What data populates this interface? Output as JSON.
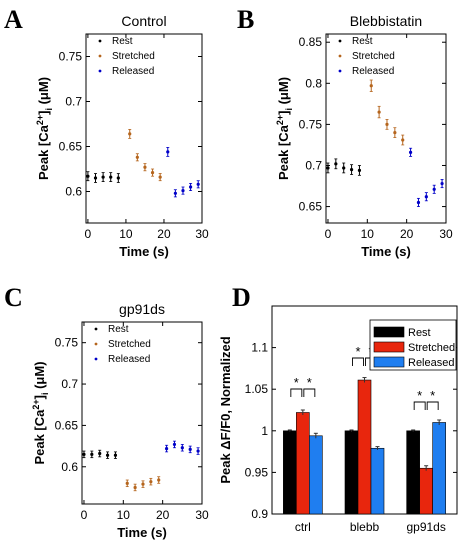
{
  "chart_data": [
    {
      "id": "A",
      "type": "scatter",
      "panel_label": "A",
      "title": "Control",
      "xlabel": "Time (s)",
      "ylabel_main": "Peak [Ca",
      "ylabel_sup": "2+",
      "ylabel_tail": "]",
      "ylabel_sub": "i",
      "ylabel_unit": " (μM)",
      "xlim": [
        -0.5,
        30
      ],
      "ylim": [
        0.565,
        0.775
      ],
      "xticks": [
        0,
        10,
        20,
        30
      ],
      "xtick_labels": [
        "0",
        "10",
        "20",
        "30"
      ],
      "yticks": [
        0.6,
        0.65,
        0.7,
        0.75
      ],
      "ytick_labels": [
        "0.6",
        "0.65",
        "0.7",
        "0.75"
      ],
      "legend": [
        "Rest",
        "Stretched",
        "Released"
      ],
      "series": [
        {
          "name": "Rest",
          "color": "#000000",
          "x": [
            0,
            2,
            4,
            6,
            8
          ],
          "y": [
            0.617,
            0.615,
            0.616,
            0.616,
            0.615
          ],
          "err": [
            0.005,
            0.005,
            0.005,
            0.005,
            0.005
          ]
        },
        {
          "name": "Stretched",
          "color": "#b5651d",
          "x": [
            11,
            13,
            15,
            17,
            19
          ],
          "y": [
            0.664,
            0.638,
            0.627,
            0.621,
            0.616
          ],
          "err": [
            0.005,
            0.004,
            0.004,
            0.004,
            0.004
          ]
        },
        {
          "name": "Released",
          "color": "#0000c8",
          "x": [
            21,
            23,
            25,
            27,
            29
          ],
          "y": [
            0.644,
            0.598,
            0.601,
            0.605,
            0.608
          ],
          "err": [
            0.005,
            0.004,
            0.004,
            0.004,
            0.004
          ]
        }
      ]
    },
    {
      "id": "B",
      "type": "scatter",
      "panel_label": "B",
      "title": "Blebbistatin",
      "xlabel": "Time (s)",
      "ylabel_main": "Peak [Ca",
      "ylabel_sup": "2+",
      "ylabel_tail": "]",
      "ylabel_sub": "i",
      "ylabel_unit": " (μM)",
      "xlim": [
        -0.5,
        30
      ],
      "ylim": [
        0.63,
        0.86
      ],
      "xticks": [
        0,
        10,
        20,
        30
      ],
      "xtick_labels": [
        "0",
        "10",
        "20",
        "30"
      ],
      "yticks": [
        0.65,
        0.7,
        0.75,
        0.8,
        0.85
      ],
      "ytick_labels": [
        "0.65",
        "0.7",
        "0.75",
        "0.8",
        "0.85"
      ],
      "legend": [
        "Rest",
        "Stretched",
        "Released"
      ],
      "series": [
        {
          "name": "Rest",
          "color": "#000000",
          "x": [
            0,
            2,
            4,
            6,
            8
          ],
          "y": [
            0.697,
            0.702,
            0.697,
            0.695,
            0.694
          ],
          "err": [
            0.006,
            0.006,
            0.006,
            0.006,
            0.006
          ]
        },
        {
          "name": "Stretched",
          "color": "#b5651d",
          "x": [
            11,
            13,
            15,
            17,
            19
          ],
          "y": [
            0.797,
            0.765,
            0.75,
            0.74,
            0.731
          ],
          "err": [
            0.007,
            0.007,
            0.006,
            0.006,
            0.006
          ]
        },
        {
          "name": "Released",
          "color": "#0000c8",
          "x": [
            21,
            23,
            25,
            27,
            29
          ],
          "y": [
            0.716,
            0.655,
            0.662,
            0.671,
            0.678
          ],
          "err": [
            0.005,
            0.005,
            0.005,
            0.005,
            0.005
          ]
        }
      ]
    },
    {
      "id": "C",
      "type": "scatter",
      "panel_label": "C",
      "title": "gp91ds",
      "xlabel": "Time (s)",
      "ylabel_main": "Peak [Ca",
      "ylabel_sup": "2+",
      "ylabel_tail": "]",
      "ylabel_sub": "i",
      "ylabel_unit": " (μM)",
      "xlim": [
        -0.5,
        30
      ],
      "ylim": [
        0.555,
        0.775
      ],
      "xticks": [
        0,
        10,
        20,
        30
      ],
      "xtick_labels": [
        "0",
        "10",
        "20",
        "30"
      ],
      "yticks": [
        0.6,
        0.65,
        0.7,
        0.75
      ],
      "ytick_labels": [
        "0.6",
        "0.65",
        "0.7",
        "0.75"
      ],
      "legend": [
        "Rest",
        "Stretched",
        "Released"
      ],
      "series": [
        {
          "name": "Rest",
          "color": "#000000",
          "x": [
            0,
            2,
            4,
            6,
            8
          ],
          "y": [
            0.615,
            0.615,
            0.616,
            0.614,
            0.614
          ],
          "err": [
            0.004,
            0.004,
            0.004,
            0.004,
            0.004
          ]
        },
        {
          "name": "Stretched",
          "color": "#b5651d",
          "x": [
            11,
            13,
            15,
            17,
            19
          ],
          "y": [
            0.58,
            0.575,
            0.579,
            0.582,
            0.584
          ],
          "err": [
            0.004,
            0.004,
            0.004,
            0.004,
            0.004
          ]
        },
        {
          "name": "Released",
          "color": "#0000c8",
          "x": [
            21,
            23,
            25,
            27,
            29
          ],
          "y": [
            0.622,
            0.627,
            0.623,
            0.621,
            0.619
          ],
          "err": [
            0.004,
            0.004,
            0.004,
            0.004,
            0.004
          ]
        }
      ]
    },
    {
      "id": "D",
      "type": "bar",
      "panel_label": "D",
      "ylabel_main": "Peak ΔF/F0, Normalized",
      "ylim": [
        0.9,
        1.15
      ],
      "yticks": [
        0.9,
        0.95,
        1.0,
        1.05,
        1.1
      ],
      "ytick_labels": [
        "0.9",
        "0.95",
        "1",
        "1.05",
        "1.1"
      ],
      "categories": [
        "ctrl",
        "blebb",
        "gp91ds"
      ],
      "legend": [
        "Rest",
        "Stretched",
        "Released"
      ],
      "series": [
        {
          "name": "Rest",
          "color": "#000000",
          "values": [
            1.0,
            1.0,
            1.0
          ],
          "err": [
            0.001,
            0.001,
            0.001
          ]
        },
        {
          "name": "Stretched",
          "color": "#e8260d",
          "values": [
            1.022,
            1.061,
            0.955
          ],
          "err": [
            0.003,
            0.003,
            0.003
          ]
        },
        {
          "name": "Released",
          "color": "#1f7ef0",
          "values": [
            0.994,
            0.979,
            1.01
          ],
          "err": [
            0.003,
            0.002,
            0.003
          ]
        }
      ],
      "significance_label": "*"
    }
  ]
}
